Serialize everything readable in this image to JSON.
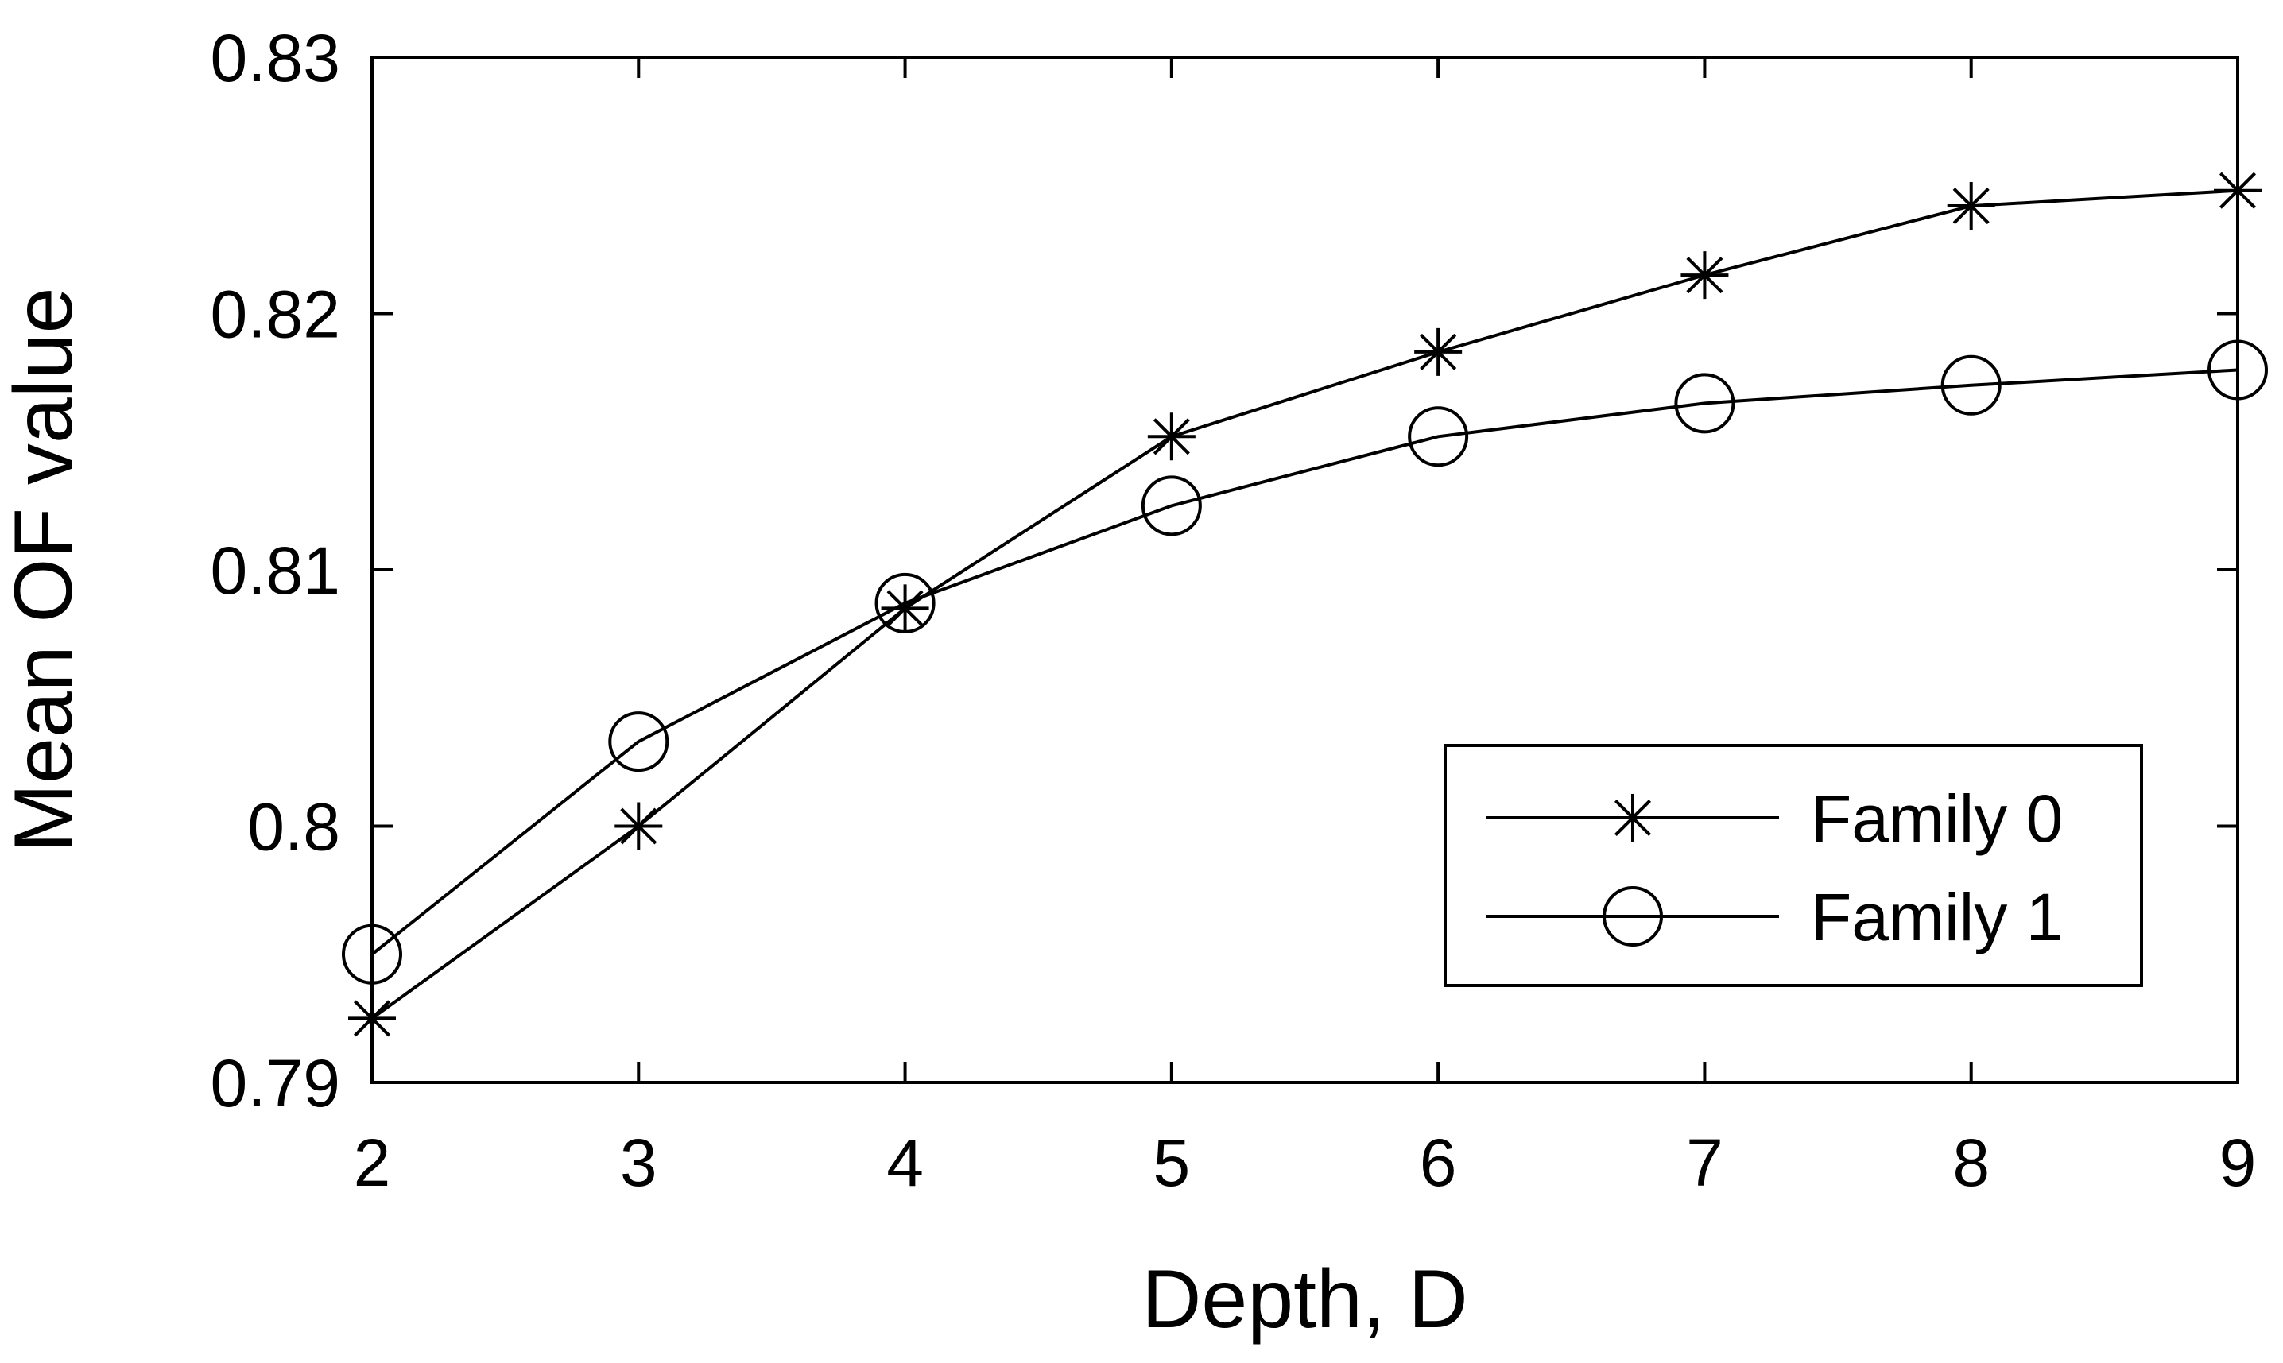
{
  "chart_data": {
    "type": "line",
    "xlabel": "Depth, D",
    "ylabel": "Mean OF value",
    "xlim": [
      2,
      9
    ],
    "ylim": [
      0.79,
      0.83
    ],
    "xticks": [
      "2",
      "3",
      "4",
      "5",
      "6",
      "7",
      "8",
      "9"
    ],
    "yticks": [
      "0.79",
      "0.8",
      "0.81",
      "0.82",
      "0.83"
    ],
    "grid": false,
    "legend_position": "bottom-right",
    "x": [
      2,
      3,
      4,
      5,
      6,
      7,
      8,
      9
    ],
    "series": [
      {
        "name": "Family 0",
        "marker": "asterisk",
        "values": [
          0.7925,
          0.8,
          0.8085,
          0.8152,
          0.8185,
          0.8215,
          0.8242,
          0.8248
        ]
      },
      {
        "name": "Family 1",
        "marker": "circle",
        "values": [
          0.795,
          0.8033,
          0.8087,
          0.8125,
          0.8152,
          0.8165,
          0.8172,
          0.8178
        ]
      }
    ],
    "colors": {
      "line": "#000000",
      "background": "#ffffff"
    }
  }
}
